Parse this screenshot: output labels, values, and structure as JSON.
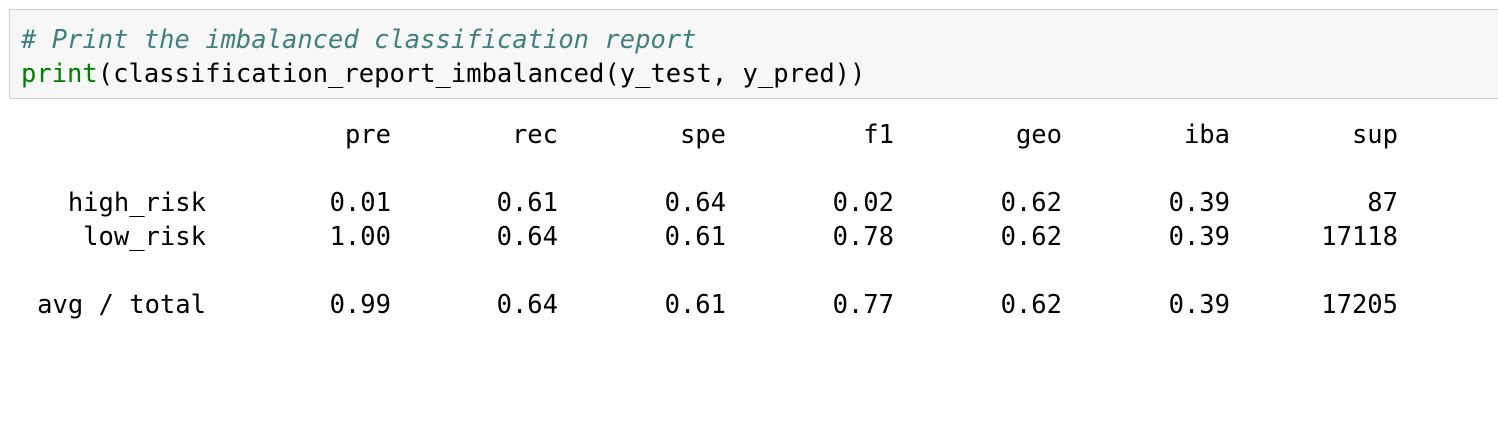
{
  "code": {
    "comment": "# Print the imbalanced classification report",
    "builtin": "print",
    "rest": "(classification_report_imbalanced(y_test, y_pred))"
  },
  "report": {
    "headers": [
      "pre",
      "rec",
      "spe",
      "f1",
      "geo",
      "iba",
      "sup"
    ],
    "rows": [
      {
        "label": "high_risk",
        "values": [
          "0.01",
          "0.61",
          "0.64",
          "0.02",
          "0.62",
          "0.39",
          "87"
        ]
      },
      {
        "label": "low_risk",
        "values": [
          "1.00",
          "0.64",
          "0.61",
          "0.78",
          "0.62",
          "0.39",
          "17118"
        ]
      }
    ],
    "total": {
      "label": "avg / total",
      "values": [
        "0.99",
        "0.64",
        "0.61",
        "0.77",
        "0.62",
        "0.39",
        "17205"
      ]
    }
  },
  "colors": {
    "comment": "#408080",
    "builtin": "#008000",
    "cell_background": "#f7f7f7",
    "cell_border": "#cfcfcf"
  }
}
